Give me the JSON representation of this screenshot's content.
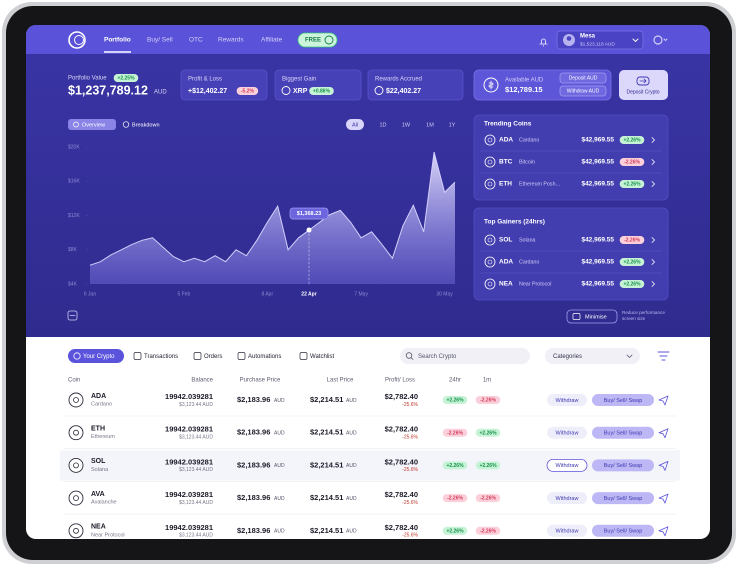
{
  "nav": {
    "items": [
      "Portfolio",
      "Buy/ Sell",
      "OTC",
      "Rewards",
      "Affiliate"
    ],
    "free": "FREE",
    "user_name": "Mesa",
    "user_balance": "$1,523,118 AUD"
  },
  "summary": {
    "portfolio_label": "Portfolio Value",
    "portfolio_change": "+2.25%",
    "portfolio_value": "$1,237,789.12",
    "portfolio_unit": "AUD",
    "cards": [
      {
        "label": "Profit & Loss",
        "value": "+$12,402.27",
        "change": "-5.2%"
      },
      {
        "label": "Biggest Gain",
        "value": "XRP",
        "change": "+0.86%"
      },
      {
        "label": "Rewards Accrued",
        "value": "$22,402.27"
      }
    ]
  },
  "wallet": {
    "label": "Available AUD",
    "value": "$12,789.15",
    "deposit": "Deposit AUD",
    "withdraw": "Withdraw AUD",
    "deposit_crypto": "Deposit Crypto"
  },
  "chart_data": {
    "type": "area",
    "tabs": [
      "Overview",
      "Breakdown"
    ],
    "ranges": [
      "All",
      "1D",
      "1W",
      "1M",
      "1Y"
    ],
    "categories": [
      "6 Jan",
      null,
      null,
      null,
      null,
      null,
      null,
      null,
      null,
      "5 Feb",
      null,
      null,
      null,
      null,
      null,
      null,
      null,
      "8 Apr",
      null,
      null,
      null,
      "22 Apr",
      null,
      null,
      null,
      null,
      "7 May",
      null,
      null,
      null,
      null,
      null,
      null,
      null,
      "30 May",
      null
    ],
    "values": [
      6.2,
      6.6,
      7.4,
      8.0,
      8.6,
      9.1,
      9.4,
      8.3,
      7.2,
      6.6,
      7.0,
      6.6,
      7.3,
      6.6,
      8.0,
      7.3,
      9.1,
      11.2,
      13.1,
      8.0,
      9.4,
      10.3,
      11.2,
      12.1,
      12.6,
      11.2,
      9.4,
      10.1,
      8.6,
      7.0,
      10.8,
      13.2,
      10.1,
      19.4,
      14.7,
      15.9
    ],
    "annotation": "$1,368.23",
    "color": "#d4cffb",
    "ylim": [
      4,
      20
    ],
    "yticks": [
      {
        "value": 20,
        "label": "$20K"
      },
      {
        "value": 16,
        "label": "$16K"
      },
      {
        "value": 12,
        "label": "$12K"
      },
      {
        "value": 8,
        "label": "$8K"
      },
      {
        "value": 4,
        "label": "$4K"
      }
    ]
  },
  "trending": {
    "title": "Trending Coins",
    "rows": [
      {
        "symbol": "ADA",
        "name": "Cardano",
        "price": "$42,969.55",
        "change": "+2.26%"
      },
      {
        "symbol": "BTC",
        "name": "Bitcoin",
        "price": "$42,969.55",
        "change": "-2.26%"
      },
      {
        "symbol": "ETH",
        "name": "Ethereum Posh...",
        "price": "$42,969.55",
        "change": "+2.26%"
      }
    ]
  },
  "gainers": {
    "title": "Top Gainers (24hrs)",
    "rows": [
      {
        "symbol": "SOL",
        "name": "Solana",
        "price": "$42,969.55",
        "change": "-2.26%"
      },
      {
        "symbol": "ADA",
        "name": "Cardano",
        "price": "$42,969.55",
        "change": "+2.26%"
      },
      {
        "symbol": "NEA",
        "name": "Near Protocol",
        "price": "$42,969.55",
        "change": "+2.26%"
      }
    ]
  },
  "controls": {
    "minimise": "Minimise",
    "note": [
      "Reduce performance",
      "screen size"
    ]
  },
  "tabs": [
    "Your Crypto",
    "Transactions",
    "Orders",
    "Automations",
    "Watchlist"
  ],
  "search": "Search Crypto",
  "categories": "Categories",
  "table": {
    "columns": [
      "Coin",
      "Balance",
      "Purchase Price",
      "Last Price",
      "Profit/ Loss",
      "24hr",
      "1m"
    ],
    "unit": "AUD",
    "withdraw": "Withdraw",
    "trade": "Buy/ Sell/ Swap",
    "rows": [
      {
        "symbol": "ADA",
        "name": "Cardano",
        "balance": "19942.039281",
        "balance_aud": "$3,123.44 AUD",
        "purchase": "$2,183.96",
        "last": "$2,214.51",
        "profit": "$2,782.40",
        "profit_pct": "-25.6%",
        "h24": "+2.26%",
        "m1": "-2.26%"
      },
      {
        "symbol": "ETH",
        "name": "Ethereum",
        "balance": "19942.039281",
        "balance_aud": "$3,123.44 AUD",
        "purchase": "$2,183.96",
        "last": "$2,214.51",
        "profit": "$2,782.40",
        "profit_pct": "-25.6%",
        "h24": "-2.26%",
        "m1": "+2.26%"
      },
      {
        "symbol": "SOL",
        "name": "Solana",
        "balance": "19942.039281",
        "balance_aud": "$3,123.44 AUD",
        "purchase": "$2,183.96",
        "last": "$2,214.51",
        "profit": "$2,782.40",
        "profit_pct": "-25.6%",
        "h24": "+2.26%",
        "m1": "+2.26%"
      },
      {
        "symbol": "AVA",
        "name": "Avalanche",
        "balance": "19942.039281",
        "balance_aud": "$3,123.44 AUD",
        "purchase": "$2,183.96",
        "last": "$2,214.51",
        "profit": "$2,782.40",
        "profit_pct": "-25.6%",
        "h24": "-2.26%",
        "m1": "-2.26%"
      },
      {
        "symbol": "NEA",
        "name": "Near Protocol",
        "balance": "19942.039281",
        "balance_aud": "$3,123.44 AUD",
        "purchase": "$2,183.96",
        "last": "$2,214.51",
        "profit": "$2,782.40",
        "profit_pct": "-25.6%",
        "h24": "+2.26%",
        "m1": "-2.26%"
      }
    ]
  }
}
